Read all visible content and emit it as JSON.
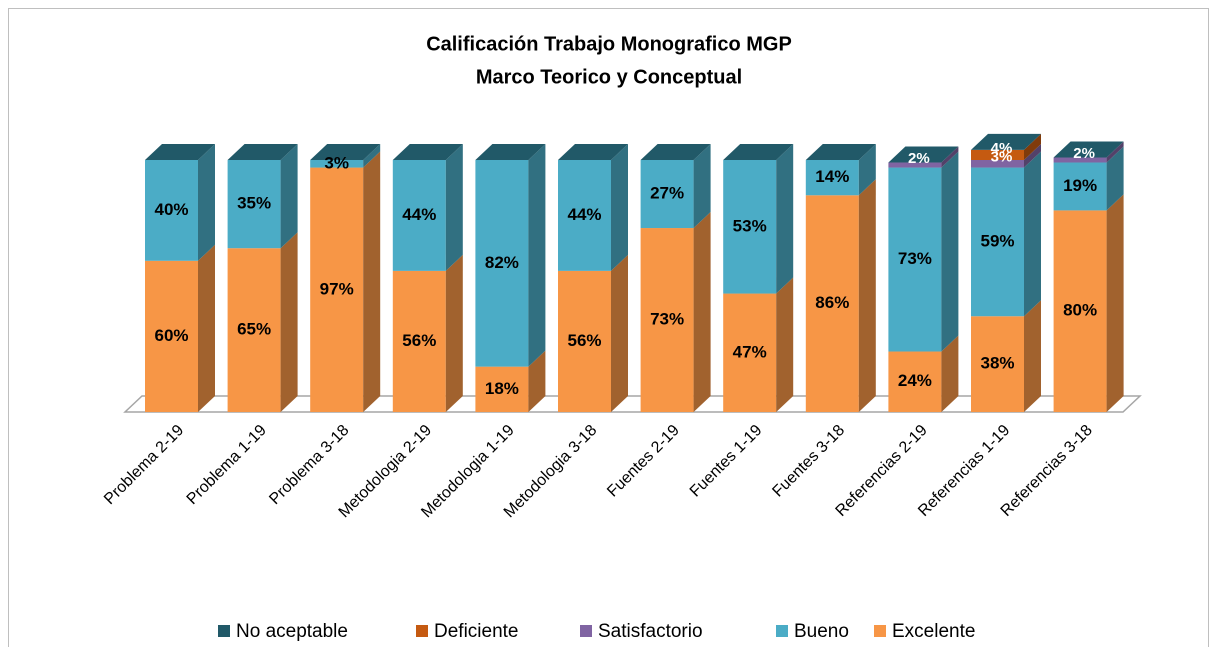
{
  "chart_data": {
    "type": "bar3d_stacked",
    "title": [
      "Calificación Trabajo Monografico MGP",
      "Marco Teorico y Conceptual"
    ],
    "categories": [
      "Problema 2-19",
      "Problema 1-19",
      "Problema 3-18",
      "Metodologia 2-19",
      "Metodologia 1-19",
      "Metodologia 3-18",
      "Fuentes 2-19",
      "Fuentes 1-19",
      "Fuentes 3-18",
      "Referencias 2-19",
      "Referencias 1-19",
      "Referencias 3-18"
    ],
    "ylim": [
      0,
      100
    ],
    "series": [
      {
        "name": "Excelente",
        "color": "#f79646",
        "values": [
          60,
          65,
          97,
          56,
          18,
          56,
          73,
          47,
          86,
          24,
          38,
          80
        ],
        "value_labels": [
          "60%",
          "65%",
          "97%",
          "56%",
          "18%",
          "56%",
          "73%",
          "47%",
          "86%",
          "24%",
          "38%",
          "80%"
        ]
      },
      {
        "name": "Bueno",
        "color": "#4bacc6",
        "values": [
          40,
          35,
          3,
          44,
          82,
          44,
          27,
          53,
          14,
          73,
          59,
          19
        ],
        "value_labels": [
          "40%",
          "35%",
          "3%",
          "44%",
          "82%",
          "44%",
          "27%",
          "53%",
          "14%",
          "73%",
          "59%",
          "19%"
        ]
      },
      {
        "name": "Satisfactorio",
        "color": "#8064a2",
        "values": [
          0,
          0,
          0,
          0,
          0,
          0,
          0,
          0,
          0,
          2,
          3,
          2
        ],
        "value_labels": [
          null,
          null,
          null,
          null,
          null,
          null,
          null,
          null,
          null,
          "2%",
          "3%",
          "2%"
        ]
      },
      {
        "name": "Deficiente",
        "color": "#c55a11",
        "values": [
          0,
          0,
          0,
          0,
          0,
          0,
          0,
          0,
          0,
          0,
          4,
          0
        ],
        "value_labels": [
          null,
          null,
          null,
          null,
          null,
          null,
          null,
          null,
          null,
          null,
          "4%",
          null
        ]
      },
      {
        "name": "No aceptable",
        "color": "#215968",
        "values": [
          0,
          0,
          0,
          0,
          0,
          0,
          0,
          0,
          0,
          0,
          0,
          0
        ]
      }
    ]
  }
}
